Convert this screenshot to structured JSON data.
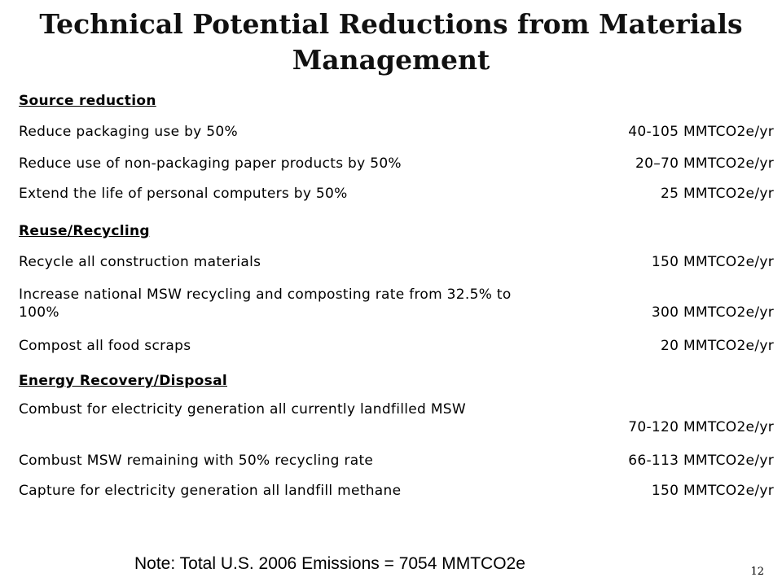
{
  "title": {
    "line1": "Technical Potential Reductions from Materials",
    "line2": "Management"
  },
  "sections": [
    {
      "heading": "Source reduction",
      "items": [
        {
          "label": "Reduce packaging use by 50%",
          "value": "40-105 MMTCO2e/yr"
        },
        {
          "label": "Reduce use of non-packaging paper products by 50%",
          "value": "20–70 MMTCO2e/yr"
        },
        {
          "label": "Extend the life of personal computers by 50%",
          "value": "25 MMTCO2e/yr"
        }
      ]
    },
    {
      "heading": "Reuse/Recycling",
      "items": [
        {
          "label": "Recycle all construction materials",
          "value": "150 MMTCO2e/yr"
        },
        {
          "label": "Increase national MSW recycling and composting rate from 32.5% to 100%",
          "value": "300 MMTCO2e/yr"
        },
        {
          "label": "Compost all food scraps",
          "value": "20 MMTCO2e/yr"
        }
      ]
    },
    {
      "heading": "Energy Recovery/Disposal",
      "items": [
        {
          "label": "Combust for electricity generation all currently landfilled MSW",
          "value": "70-120 MMTCO2e/yr"
        },
        {
          "label": "Combust MSW remaining with 50% recycling rate",
          "value": "66-113 MMTCO2e/yr"
        },
        {
          "label": "Capture for electricity generation all landfill methane",
          "value": "150 MMTCO2e/yr"
        }
      ]
    }
  ],
  "note": "Note: Total U.S. 2006 Emissions = 7054 MMTCO2e",
  "page_number": "12"
}
